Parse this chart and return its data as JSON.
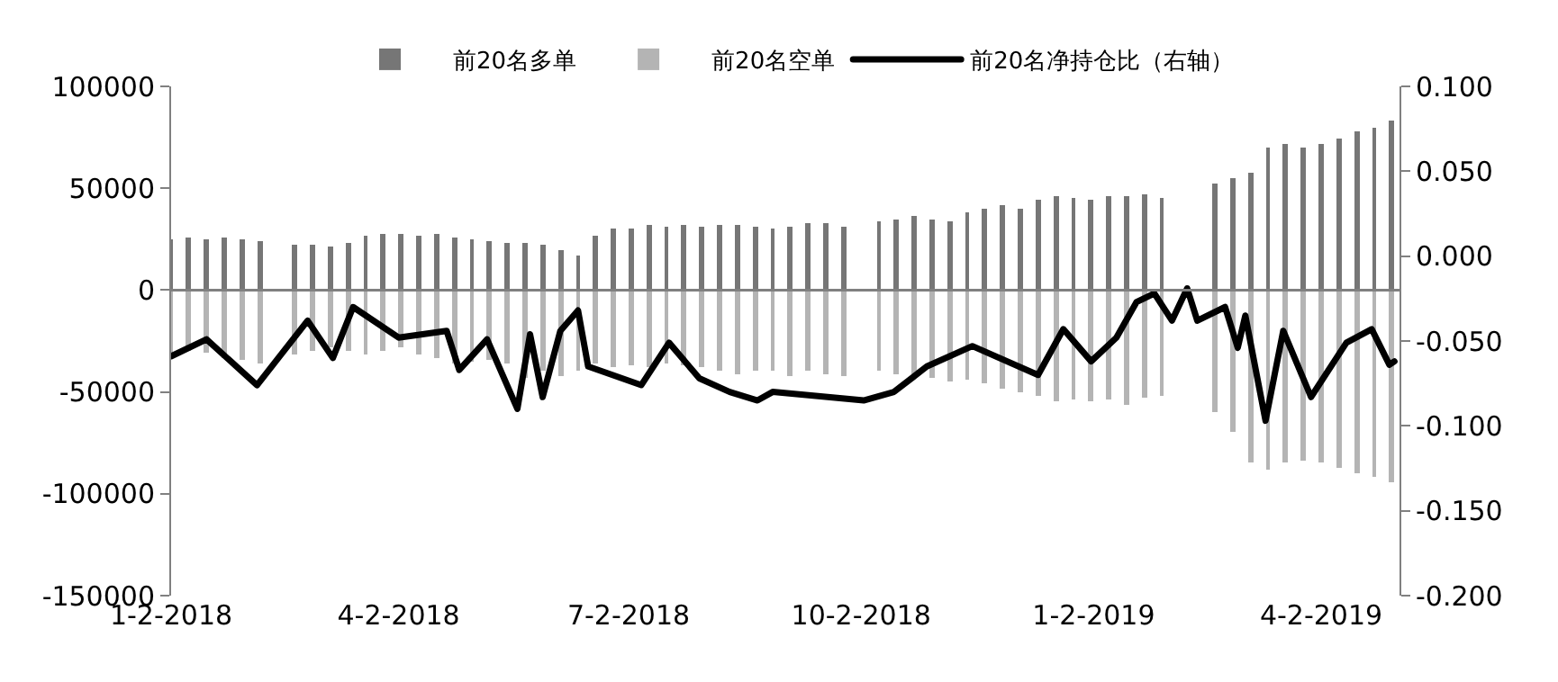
{
  "chart_data": {
    "type": "bar",
    "x": [
      "2018-01-02",
      "2018-01-09",
      "2018-01-16",
      "2018-01-23",
      "2018-01-30",
      "2018-02-06",
      "2018-02-13",
      "2018-02-20",
      "2018-02-27",
      "2018-03-06",
      "2018-03-13",
      "2018-03-20",
      "2018-03-27",
      "2018-04-03",
      "2018-04-10",
      "2018-04-17",
      "2018-04-24",
      "2018-05-01",
      "2018-05-08",
      "2018-05-15",
      "2018-05-22",
      "2018-05-29",
      "2018-06-05",
      "2018-06-12",
      "2018-06-19",
      "2018-06-26",
      "2018-07-03",
      "2018-07-10",
      "2018-07-17",
      "2018-07-24",
      "2018-07-31",
      "2018-08-07",
      "2018-08-14",
      "2018-08-21",
      "2018-08-28",
      "2018-09-04",
      "2018-09-11",
      "2018-09-18",
      "2018-09-25",
      "2018-10-02",
      "2018-10-09",
      "2018-10-16",
      "2018-10-23",
      "2018-10-30",
      "2018-11-06",
      "2018-11-13",
      "2018-11-20",
      "2018-11-27",
      "2018-12-04",
      "2018-12-11",
      "2018-12-18",
      "2018-12-25",
      "2019-01-01",
      "2019-01-08",
      "2019-01-15",
      "2019-01-22",
      "2019-01-29",
      "2019-02-05",
      "2019-02-12",
      "2019-02-19",
      "2019-02-26",
      "2019-03-05",
      "2019-03-12",
      "2019-03-19",
      "2019-03-26",
      "2019-04-02",
      "2019-04-09",
      "2019-04-16",
      "2019-04-23",
      "2019-04-30"
    ],
    "series": [
      {
        "name": "前20名多单",
        "color": "#767676",
        "values": [
          25000,
          26000,
          25000,
          26000,
          25000,
          24000,
          null,
          22000,
          22000,
          21000,
          23000,
          27000,
          28000,
          28000,
          27000,
          28000,
          26000,
          25000,
          24000,
          23000,
          23000,
          22000,
          20000,
          17000,
          27000,
          30000,
          30000,
          32000,
          31000,
          32000,
          31000,
          32000,
          32000,
          31000,
          30000,
          31000,
          33000,
          33000,
          31000,
          null,
          34000,
          35000,
          36000,
          35000,
          34000,
          38000,
          40000,
          42000,
          40000,
          44000,
          46000,
          45000,
          44000,
          46000,
          46000,
          47000,
          45000,
          null,
          null,
          52000,
          55000,
          58000,
          70000,
          72000,
          70000,
          72000,
          74000,
          78000,
          80000,
          83000
        ]
      },
      {
        "name": "前20名空单",
        "color": "#b4b4b4",
        "values": [
          -32000,
          -30000,
          -31000,
          -33000,
          -34000,
          -36000,
          null,
          -32000,
          -30000,
          -28000,
          -30000,
          -32000,
          -30000,
          -28000,
          -32000,
          -33000,
          -36000,
          -35000,
          -34000,
          -36000,
          -43000,
          -40000,
          -42000,
          -40000,
          -36000,
          -38000,
          -37000,
          -38000,
          -36000,
          -37000,
          -38000,
          -40000,
          -41000,
          -40000,
          -40000,
          -42000,
          -40000,
          -41000,
          -42000,
          null,
          -40000,
          -41000,
          -42000,
          -43000,
          -45000,
          -44000,
          -46000,
          -48000,
          -50000,
          -52000,
          -55000,
          -54000,
          -55000,
          -54000,
          -56000,
          -53000,
          -52000,
          null,
          null,
          -60000,
          -70000,
          -85000,
          -88000,
          -85000,
          -84000,
          -85000,
          -87000,
          -90000,
          -92000,
          -94000
        ]
      },
      {
        "name": "前20名净持仓比（右轴）",
        "type": "line",
        "axis": "y2",
        "color": "#000000",
        "x": [
          "2018-01-02",
          "2018-01-16",
          "2018-02-05",
          "2018-02-25",
          "2018-03-07",
          "2018-03-15",
          "2018-04-02",
          "2018-04-21",
          "2018-04-26",
          "2018-05-07",
          "2018-05-19",
          "2018-05-24",
          "2018-05-29",
          "2018-06-05",
          "2018-06-12",
          "2018-06-16",
          "2018-07-07",
          "2018-07-18",
          "2018-07-30",
          "2018-08-11",
          "2018-08-22",
          "2018-08-28",
          "2018-10-03",
          "2018-10-15",
          "2018-10-28",
          "2018-11-15",
          "2018-12-11",
          "2018-12-21",
          "2019-01-01",
          "2019-01-11",
          "2019-01-19",
          "2019-01-26",
          "2019-02-02",
          "2019-02-08",
          "2019-02-12",
          "2019-02-23",
          "2019-02-28",
          "2019-03-03",
          "2019-03-11",
          "2019-03-18",
          "2019-03-29",
          "2019-04-12",
          "2019-04-22",
          "2019-04-29",
          "2019-05-01"
        ],
        "values": [
          -0.059,
          -0.049,
          -0.076,
          -0.038,
          -0.06,
          -0.03,
          -0.048,
          -0.044,
          -0.067,
          -0.049,
          -0.09,
          -0.046,
          -0.083,
          -0.044,
          -0.032,
          -0.065,
          -0.076,
          -0.051,
          -0.072,
          -0.08,
          -0.085,
          -0.08,
          -0.085,
          -0.08,
          -0.065,
          -0.053,
          -0.07,
          -0.043,
          -0.062,
          -0.048,
          -0.027,
          -0.022,
          -0.038,
          -0.019,
          -0.038,
          -0.03,
          -0.054,
          -0.035,
          -0.097,
          -0.044,
          -0.083,
          -0.051,
          -0.043,
          -0.064,
          -0.062
        ]
      }
    ],
    "xlim": [
      "2018-01-02",
      "2019-05-03"
    ],
    "xticks": [
      {
        "value": "2018-01-02",
        "label": "1-2-2018"
      },
      {
        "value": "2018-04-02",
        "label": "4-2-2018"
      },
      {
        "value": "2018-07-02",
        "label": "7-2-2018"
      },
      {
        "value": "2018-10-02",
        "label": "10-2-2018"
      },
      {
        "value": "2019-01-02",
        "label": "1-2-2019"
      },
      {
        "value": "2019-04-02",
        "label": "4-2-2019"
      }
    ],
    "ylim": [
      -150000,
      100000
    ],
    "yticks": [
      -150000,
      -100000,
      -50000,
      0,
      50000,
      100000
    ],
    "y2lim": [
      -0.2,
      0.1
    ],
    "y2ticks": [
      {
        "value": -0.2,
        "label": "-0.200"
      },
      {
        "value": -0.15,
        "label": "-0.150"
      },
      {
        "value": -0.1,
        "label": "-0.100"
      },
      {
        "value": -0.05,
        "label": "-0.050"
      },
      {
        "value": 0,
        "label": "0.000"
      },
      {
        "value": 0.05,
        "label": "0.050"
      },
      {
        "value": 0.1,
        "label": "0.100"
      }
    ],
    "stacked": true,
    "legend": "top"
  }
}
